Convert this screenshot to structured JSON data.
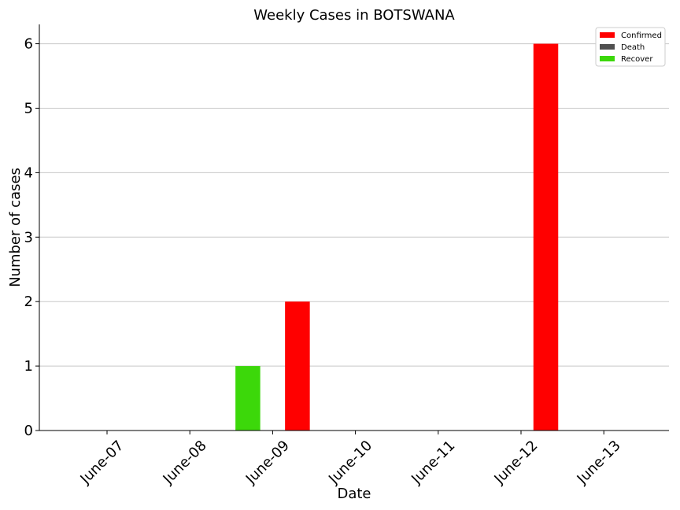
{
  "chart_data": {
    "type": "bar",
    "title": "Weekly Cases in BOTSWANA",
    "xlabel": "Date",
    "ylabel": "Number of cases",
    "categories": [
      "June-07",
      "June-08",
      "June-09",
      "June-10",
      "June-11",
      "June-12",
      "June-13"
    ],
    "series": [
      {
        "name": "Confirmed",
        "color": "#ff0000",
        "values": [
          0,
          0,
          2,
          0,
          0,
          6,
          0
        ]
      },
      {
        "name": "Death",
        "color": "#505050",
        "values": [
          0,
          0,
          0,
          0,
          0,
          0,
          0
        ]
      },
      {
        "name": "Recover",
        "color": "#3cd80a",
        "values": [
          0,
          0,
          1,
          0,
          0,
          0,
          0
        ]
      }
    ],
    "ylim": [
      0,
      6.3
    ],
    "yticks": [
      0,
      1,
      2,
      3,
      4,
      5,
      6
    ],
    "grid": "horizontal",
    "legend_position": "top-right"
  }
}
